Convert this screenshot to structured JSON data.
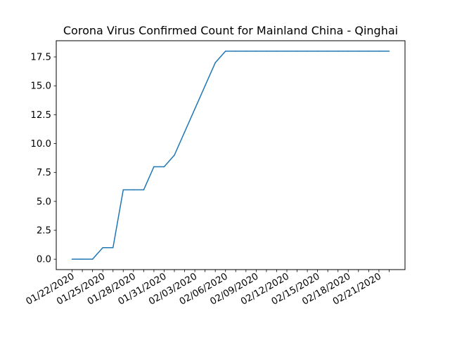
{
  "chart_data": {
    "type": "line",
    "title": "Corona Virus Confirmed Count for Mainland China - Qinghai",
    "xlabel": "",
    "ylabel": "",
    "x": [
      "01/22/2020",
      "01/23/2020",
      "01/24/2020",
      "01/25/2020",
      "01/26/2020",
      "01/27/2020",
      "01/28/2020",
      "01/29/2020",
      "01/30/2020",
      "01/31/2020",
      "02/01/2020",
      "02/02/2020",
      "02/03/2020",
      "02/04/2020",
      "02/05/2020",
      "02/06/2020",
      "02/07/2020",
      "02/08/2020",
      "02/09/2020",
      "02/10/2020",
      "02/11/2020",
      "02/12/2020",
      "02/13/2020",
      "02/14/2020",
      "02/15/2020",
      "02/16/2020",
      "02/17/2020",
      "02/18/2020",
      "02/19/2020",
      "02/20/2020",
      "02/21/2020",
      "02/22/2020"
    ],
    "x_tick_labels": [
      "01/22/2020",
      "01/25/2020",
      "01/28/2020",
      "01/31/2020",
      "02/03/2020",
      "02/06/2020",
      "02/09/2020",
      "02/12/2020",
      "02/15/2020",
      "02/18/2020",
      "02/21/2020"
    ],
    "y_ticks": [
      "0.0",
      "2.5",
      "5.0",
      "7.5",
      "10.0",
      "12.5",
      "15.0",
      "17.5"
    ],
    "series": [
      {
        "color": "#1f77b4",
        "values": [
          0,
          0,
          0,
          1,
          1,
          6,
          6,
          6,
          8,
          8,
          9,
          11,
          13,
          15,
          17,
          18,
          18,
          18,
          18,
          18,
          18,
          18,
          18,
          18,
          18,
          18,
          18,
          18,
          18,
          18,
          18,
          18
        ]
      }
    ],
    "ylim": [
      -0.9,
      18.9
    ],
    "grid": false,
    "legend": "none"
  }
}
